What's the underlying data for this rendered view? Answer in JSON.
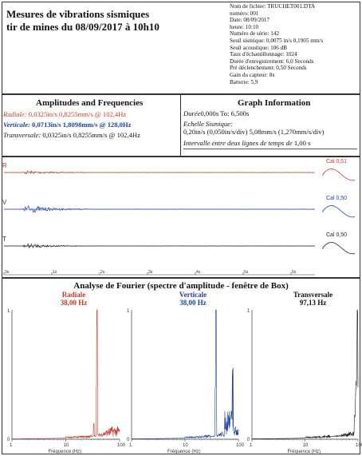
{
  "header": {
    "title_line1": "Mesures de vibrations sismiques",
    "title_line2": "tir de mines du 08/09/2017 à 10h10"
  },
  "meta": [
    "Nom de fichier: TRUCHET001.DTA",
    "numéro: 001",
    "Date: 08/09/2017",
    "heure: 10:10",
    "Numéro de série: 142",
    "Seuil sismique: 0,0075 in/s 0,1905 mm/s",
    "Seuil acoustique: 106 dB",
    "Taux d'échantillonnage: 1024",
    "Durée d'enregistrement: 6,0 Seconds",
    "Pré déclenchement: 0,50 Seconds",
    "Gain du capteur: 8x",
    "Batterie: 5,9"
  ],
  "amplitudes": {
    "title": "Amplitudes and Frequencies",
    "radial": {
      "label": "Radiale:",
      "value": "0,0325in/s  0,8255mm/s  @ 102,4Hz"
    },
    "vertical": {
      "label": "Verticale:",
      "value": "0,0713in/s  1,8098mm/s  @ 128,0Hz"
    },
    "transverse": {
      "label": "Transversale:",
      "value": "0,0325in/s  0,8255mm/s  @ 102,4Hz"
    }
  },
  "graph_info": {
    "title": "Graph Information",
    "duration_label": "Durée",
    "duration_value": "0,000s To: 6,500s",
    "scale_label": "Echelle Sismique:",
    "scale_value": "0,20in/s (0,050in/s/div)  5,08mm/s (1,270mm/s/div)",
    "interval_label": "Intervalle entre deux lignes de temps de",
    "interval_value": "1,00 s"
  },
  "waveforms": {
    "channels": [
      {
        "id": "R",
        "color": "#c0392b",
        "cal": "Cal 0,51"
      },
      {
        "id": "V",
        "color": "#1d3fa8",
        "cal": "Cal 0,50"
      },
      {
        "id": "T",
        "color": "#222222",
        "cal": "Cal 0,50"
      }
    ],
    "time_ticks": [
      "0s",
      "1s",
      "2s",
      "3s",
      "4s",
      "5s",
      "6s"
    ]
  },
  "fourier": {
    "title": "Analyse de Fourier (spectre d'amplitude - fenêtre de Box)",
    "xlabel": "Fréquence (Hz)",
    "panels": [
      {
        "name": "Radiale",
        "peak": "38,00 Hz",
        "color": "#c0392b"
      },
      {
        "name": "Verticale",
        "peak": "38,00 Hz",
        "color": "#1d3fa8"
      },
      {
        "name": "Transversale",
        "peak": "97,13 Hz",
        "color": "#111111"
      }
    ],
    "y_ticks": [
      "1",
      "0"
    ],
    "x_ticks": [
      "1",
      "10",
      "100"
    ]
  }
}
